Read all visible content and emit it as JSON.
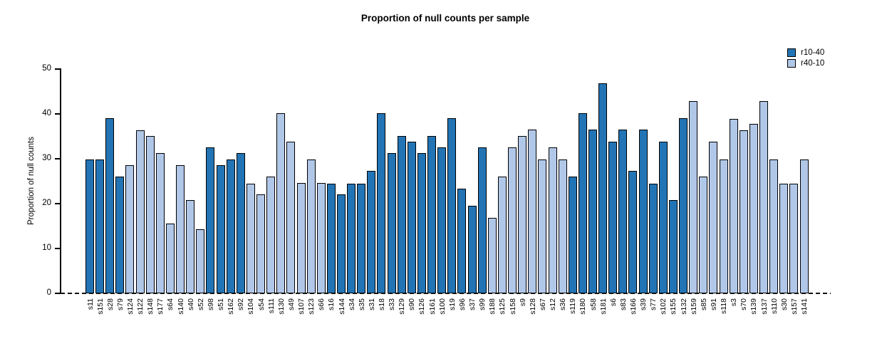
{
  "title": "Proportion of null counts per sample",
  "legend": {
    "items": [
      {
        "label": "r10-40",
        "color": "#2274b5"
      },
      {
        "label": "r40-10",
        "color": "#b0c7e8"
      }
    ]
  },
  "chart_data": {
    "type": "bar",
    "title": "Proportion of null counts per sample",
    "xlabel": "",
    "ylabel": "Proportion of null counts",
    "ylim": [
      0,
      50
    ],
    "yticks": [
      0,
      10,
      20,
      30,
      40,
      50
    ],
    "grid": false,
    "legend_position": "top-right",
    "zero_line_style": "dashed",
    "series_colors": {
      "r10-40": "#2274b5",
      "r40-10": "#b0c7e8"
    },
    "bar_outline_color": "#000000",
    "bars": [
      {
        "label": "s11",
        "value": 29.8,
        "series": "r10-40"
      },
      {
        "label": "s151",
        "value": 29.8,
        "series": "r10-40"
      },
      {
        "label": "s28",
        "value": 39.0,
        "series": "r10-40"
      },
      {
        "label": "s79",
        "value": 26.0,
        "series": "r10-40"
      },
      {
        "label": "s124",
        "value": 28.5,
        "series": "r40-10"
      },
      {
        "label": "s122",
        "value": 36.4,
        "series": "r40-10"
      },
      {
        "label": "s148",
        "value": 35.1,
        "series": "r40-10"
      },
      {
        "label": "s177",
        "value": 31.3,
        "series": "r40-10"
      },
      {
        "label": "s64",
        "value": 15.6,
        "series": "r40-10"
      },
      {
        "label": "s140",
        "value": 28.5,
        "series": "r40-10"
      },
      {
        "label": "s40",
        "value": 20.8,
        "series": "r40-10"
      },
      {
        "label": "s52",
        "value": 14.3,
        "series": "r40-10"
      },
      {
        "label": "s98",
        "value": 32.5,
        "series": "r10-40"
      },
      {
        "label": "s51",
        "value": 28.5,
        "series": "r10-40"
      },
      {
        "label": "s162",
        "value": 29.8,
        "series": "r10-40"
      },
      {
        "label": "s92",
        "value": 31.2,
        "series": "r10-40"
      },
      {
        "label": "s104",
        "value": 24.5,
        "series": "r40-10"
      },
      {
        "label": "s54",
        "value": 22.1,
        "series": "r40-10"
      },
      {
        "label": "s111",
        "value": 26.0,
        "series": "r40-10"
      },
      {
        "label": "s130",
        "value": 40.2,
        "series": "r40-10"
      },
      {
        "label": "s49",
        "value": 33.8,
        "series": "r40-10"
      },
      {
        "label": "s107",
        "value": 24.6,
        "series": "r40-10"
      },
      {
        "label": "s123",
        "value": 29.8,
        "series": "r40-10"
      },
      {
        "label": "s66",
        "value": 24.6,
        "series": "r40-10"
      },
      {
        "label": "s16",
        "value": 24.5,
        "series": "r10-40"
      },
      {
        "label": "s144",
        "value": 22.0,
        "series": "r10-40"
      },
      {
        "label": "s34",
        "value": 24.5,
        "series": "r10-40"
      },
      {
        "label": "s35",
        "value": 24.5,
        "series": "r10-40"
      },
      {
        "label": "s31",
        "value": 27.3,
        "series": "r10-40"
      },
      {
        "label": "s18",
        "value": 40.2,
        "series": "r10-40"
      },
      {
        "label": "s33",
        "value": 31.2,
        "series": "r10-40"
      },
      {
        "label": "s129",
        "value": 35.1,
        "series": "r10-40"
      },
      {
        "label": "s90",
        "value": 33.8,
        "series": "r10-40"
      },
      {
        "label": "s126",
        "value": 31.2,
        "series": "r10-40"
      },
      {
        "label": "s161",
        "value": 35.1,
        "series": "r10-40"
      },
      {
        "label": "s100",
        "value": 32.5,
        "series": "r10-40"
      },
      {
        "label": "s19",
        "value": 39.0,
        "series": "r10-40"
      },
      {
        "label": "s96",
        "value": 23.4,
        "series": "r10-40"
      },
      {
        "label": "s37",
        "value": 19.6,
        "series": "r10-40"
      },
      {
        "label": "s99",
        "value": 32.5,
        "series": "r10-40"
      },
      {
        "label": "s188",
        "value": 16.9,
        "series": "r40-10"
      },
      {
        "label": "s125",
        "value": 26.0,
        "series": "r40-10"
      },
      {
        "label": "s158",
        "value": 32.5,
        "series": "r40-10"
      },
      {
        "label": "s9",
        "value": 35.1,
        "series": "r40-10"
      },
      {
        "label": "s128",
        "value": 36.5,
        "series": "r40-10"
      },
      {
        "label": "s67",
        "value": 29.8,
        "series": "r40-10"
      },
      {
        "label": "s12",
        "value": 32.5,
        "series": "r40-10"
      },
      {
        "label": "s36",
        "value": 29.8,
        "series": "r40-10"
      },
      {
        "label": "s119",
        "value": 26.0,
        "series": "r10-40"
      },
      {
        "label": "s180",
        "value": 40.2,
        "series": "r10-40"
      },
      {
        "label": "s58",
        "value": 36.5,
        "series": "r10-40"
      },
      {
        "label": "s181",
        "value": 46.8,
        "series": "r10-40"
      },
      {
        "label": "s6",
        "value": 33.8,
        "series": "r10-40"
      },
      {
        "label": "s83",
        "value": 36.5,
        "series": "r10-40"
      },
      {
        "label": "s166",
        "value": 27.3,
        "series": "r10-40"
      },
      {
        "label": "s39",
        "value": 36.5,
        "series": "r10-40"
      },
      {
        "label": "s77",
        "value": 24.5,
        "series": "r10-40"
      },
      {
        "label": "s102",
        "value": 33.8,
        "series": "r10-40"
      },
      {
        "label": "s155",
        "value": 20.8,
        "series": "r10-40"
      },
      {
        "label": "s132",
        "value": 39.0,
        "series": "r10-40"
      },
      {
        "label": "s159",
        "value": 42.8,
        "series": "r40-10"
      },
      {
        "label": "s85",
        "value": 26.0,
        "series": "r40-10"
      },
      {
        "label": "s91",
        "value": 33.8,
        "series": "r40-10"
      },
      {
        "label": "s118",
        "value": 29.8,
        "series": "r40-10"
      },
      {
        "label": "s3",
        "value": 38.9,
        "series": "r40-10"
      },
      {
        "label": "s70",
        "value": 36.4,
        "series": "r40-10"
      },
      {
        "label": "s139",
        "value": 37.7,
        "series": "r40-10"
      },
      {
        "label": "s137",
        "value": 42.8,
        "series": "r40-10"
      },
      {
        "label": "s110",
        "value": 29.8,
        "series": "r40-10"
      },
      {
        "label": "s30",
        "value": 24.5,
        "series": "r40-10"
      },
      {
        "label": "s157",
        "value": 24.5,
        "series": "r40-10"
      },
      {
        "label": "s141",
        "value": 29.8,
        "series": "r40-10"
      }
    ]
  }
}
